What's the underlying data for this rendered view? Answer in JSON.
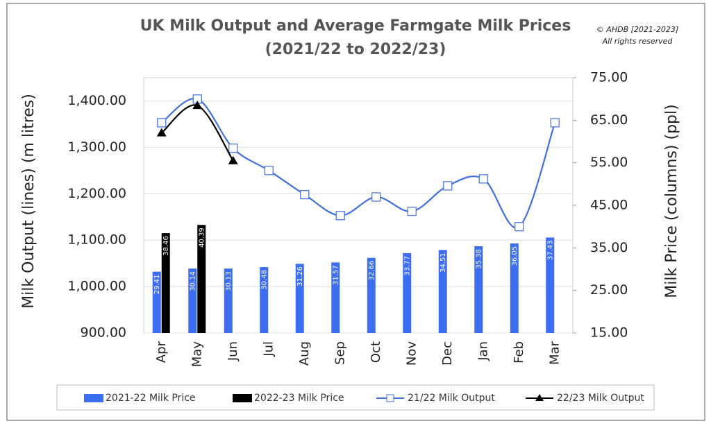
{
  "chart_data": {
    "type": "combo",
    "title": "UK Milk Output and Average Farmgate Milk Prices",
    "subtitle": "(2021/22 to 2022/23)",
    "annotations": [
      "© AHDB [2021-2023]",
      "All rights reserved"
    ],
    "y_label": "Milk Output (lines) (m litres)",
    "y2_label": "Milk Price (columns) (ppl)",
    "categories": [
      "Apr",
      "May",
      "Jun",
      "Jul",
      "Aug",
      "Sep",
      "Oct",
      "Nov",
      "Dec",
      "Jan",
      "Feb",
      "Mar"
    ],
    "ylim": [
      900,
      1450
    ],
    "yticks": [
      {
        "value": 900,
        "label": "900.00"
      },
      {
        "value": 1000,
        "label": "1,000.00"
      },
      {
        "value": 1100,
        "label": "1,100.00"
      },
      {
        "value": 1200,
        "label": "1,200.00"
      },
      {
        "value": 1300,
        "label": "1,300.00"
      },
      {
        "value": 1400,
        "label": "1,400.00"
      }
    ],
    "y2lim": [
      15,
      75
    ],
    "y2ticks": [
      {
        "value": 15,
        "label": "15.00"
      },
      {
        "value": 25,
        "label": "25.00"
      },
      {
        "value": 35,
        "label": "35.00"
      },
      {
        "value": 45,
        "label": "45.00"
      },
      {
        "value": 55,
        "label": "55.00"
      },
      {
        "value": 65,
        "label": "65.00"
      },
      {
        "value": 75,
        "label": "75.00"
      }
    ],
    "grid": true,
    "legend": "bottom",
    "series": [
      {
        "name": "2021-22 Milk Price",
        "type": "bar",
        "axis": "y2",
        "color": "#3d6ef0",
        "values": [
          29.41,
          30.14,
          30.13,
          30.48,
          31.26,
          31.57,
          32.66,
          33.77,
          34.51,
          35.38,
          36.05,
          37.43
        ]
      },
      {
        "name": "2022-23 Milk Price",
        "type": "bar",
        "axis": "y2",
        "color": "#000000",
        "values": [
          38.46,
          40.39,
          null,
          null,
          null,
          null,
          null,
          null,
          null,
          null,
          null,
          null
        ]
      },
      {
        "name": "21/22 Milk Output",
        "type": "line",
        "marker": "square-open",
        "color": "#3f6fe0",
        "values": [
          1353,
          1404,
          1298,
          1250,
          1198,
          1153,
          1193,
          1162,
          1217,
          1232,
          1129,
          1353
        ]
      },
      {
        "name": "22/23 Milk Output",
        "type": "line",
        "marker": "triangle",
        "color": "#000000",
        "values": [
          1331,
          1390,
          1271,
          null,
          null,
          null,
          null,
          null,
          null,
          null,
          null,
          null
        ]
      }
    ]
  }
}
